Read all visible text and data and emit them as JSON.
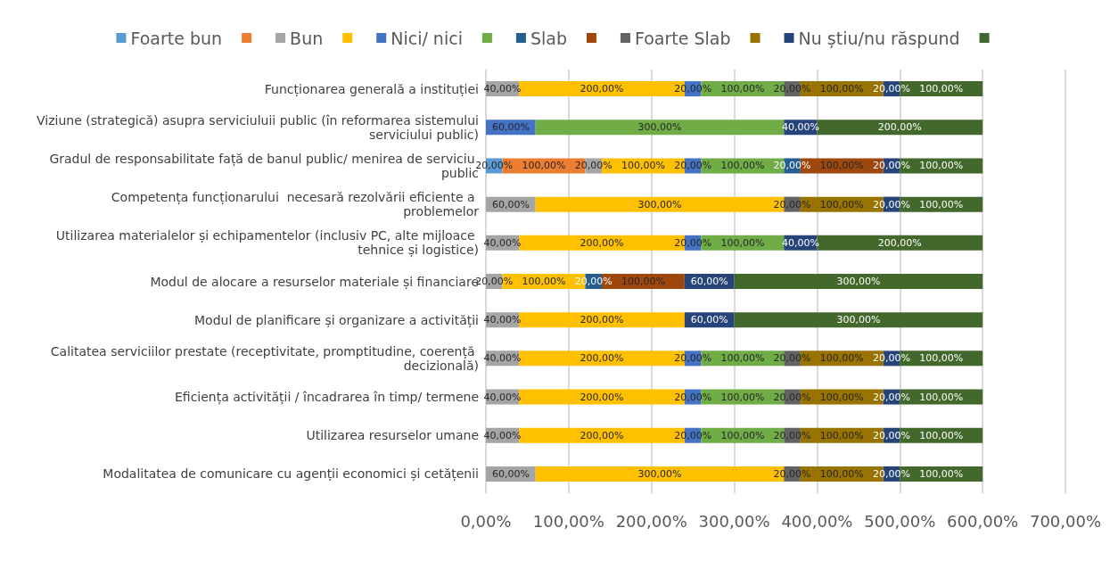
{
  "chart_data": {
    "type": "bar",
    "orientation": "horizontal",
    "stacked": true,
    "grid": "x",
    "legend": "top",
    "categories": [
      "Funcționarea generală a instituției",
      "Viziune (strategică) asupra serviciuluii public (în reformarea sistemului serviciului public)",
      "Gradul de responsabilitate față de banul public/ menirea de serviciu public",
      "Competența funcționarului  necesară rezolvării eficiente a problemelor",
      "Utilizarea materialelor și echipamentelor (inclusiv PC, alte mijloace tehnice și logistice)",
      "Modul de alocare a resurselor materiale și financiare",
      "Modul de planificare și organizare a activității",
      "Calitatea serviciilor prestate (receptivitate, promptitudine, coerență decizională)",
      "Eficiența activității / încadrarea în timp/ termene",
      "Utilizarea resurselor umane",
      "Modalitatea de comunicare cu agenții economici și cetățenii"
    ],
    "xlim": [
      0,
      700
    ],
    "xticks": [
      {
        "value": 0,
        "label": "0,00%"
      },
      {
        "value": 100,
        "label": "100,00%"
      },
      {
        "value": 200,
        "label": "200,00%"
      },
      {
        "value": 300,
        "label": "300,00%"
      },
      {
        "value": 400,
        "label": "400,00%"
      },
      {
        "value": 500,
        "label": "500,00%"
      },
      {
        "value": 600,
        "label": "600,00%"
      },
      {
        "value": 700,
        "label": "700,00%"
      }
    ],
    "series": [
      {
        "name": "Foarte bun",
        "color": "#5b9bd5",
        "values": [
          0,
          0,
          20,
          0,
          0,
          0,
          0,
          0,
          0,
          0,
          0
        ],
        "value_labels": [
          null,
          null,
          "20,00%",
          null,
          null,
          null,
          null,
          null,
          null,
          null,
          null
        ]
      },
      {
        "color": "#ed7d31",
        "values": [
          0,
          0,
          100,
          0,
          0,
          0,
          0,
          0,
          0,
          0,
          0
        ],
        "value_labels": [
          null,
          null,
          "100,00%",
          null,
          null,
          null,
          null,
          null,
          null,
          null,
          null
        ]
      },
      {
        "name": "Bun",
        "color": "#a5a5a5",
        "values": [
          40,
          0,
          20,
          60,
          40,
          20,
          40,
          40,
          40,
          40,
          60
        ],
        "value_labels": [
          "40,00%",
          null,
          "20,00%",
          "60,00%",
          "40,00%",
          "20,00%",
          "40,00%",
          "40,00%",
          "40,00%",
          "40,00%",
          "60,00%"
        ]
      },
      {
        "color": "#ffc000",
        "values": [
          200,
          0,
          100,
          300,
          200,
          100,
          200,
          200,
          200,
          200,
          300
        ],
        "value_labels": [
          "200,00%",
          null,
          "100,00%",
          "300,00%",
          "200,00%",
          "100,00%",
          "200,00%",
          "200,00%",
          "200,00%",
          "200,00%",
          "300,00%"
        ]
      },
      {
        "name": "Nici/ nici",
        "color": "#4472c4",
        "values": [
          20,
          60,
          20,
          0,
          20,
          0,
          0,
          20,
          20,
          20,
          0
        ],
        "value_labels": [
          "20,00%",
          "60,00%",
          "20,00%",
          null,
          "20,00%",
          null,
          null,
          "20,00%",
          "20,00%",
          "20,00%",
          null
        ]
      },
      {
        "color": "#70ad47",
        "values": [
          100,
          300,
          100,
          0,
          100,
          0,
          0,
          100,
          100,
          100,
          0
        ],
        "value_labels": [
          "100,00%",
          "300,00%",
          "100,00%",
          null,
          "100,00%",
          null,
          null,
          "100,00%",
          "100,00%",
          "100,00%",
          null
        ]
      },
      {
        "name": "Slab",
        "color": "#255e91",
        "values": [
          0,
          0,
          20,
          0,
          0,
          20,
          0,
          0,
          0,
          0,
          0
        ],
        "value_labels": [
          null,
          null,
          "20,00%",
          null,
          null,
          "20,00%",
          null,
          null,
          null,
          null,
          null
        ]
      },
      {
        "color": "#9e480e",
        "values": [
          0,
          0,
          100,
          0,
          0,
          100,
          0,
          0,
          0,
          0,
          0
        ],
        "value_labels": [
          null,
          null,
          "100,00%",
          null,
          null,
          "100,00%",
          null,
          null,
          null,
          null,
          null
        ]
      },
      {
        "name": "Foarte Slab",
        "color": "#636363",
        "values": [
          20,
          0,
          0,
          20,
          0,
          0,
          0,
          20,
          20,
          20,
          20
        ],
        "value_labels": [
          "20,00%",
          null,
          null,
          "20,00%",
          null,
          null,
          null,
          "20,00%",
          "20,00%",
          "20,00%",
          "20,00%"
        ]
      },
      {
        "color": "#997300",
        "values": [
          100,
          0,
          0,
          100,
          0,
          0,
          0,
          100,
          100,
          100,
          100
        ],
        "value_labels": [
          "100,00%",
          null,
          null,
          "100,00%",
          null,
          null,
          null,
          "100,00%",
          "100,00%",
          "100,00%",
          "100,00%"
        ]
      },
      {
        "name": "Nu știu/nu răspund",
        "color": "#264478",
        "values": [
          20,
          40,
          20,
          20,
          40,
          60,
          60,
          20,
          20,
          20,
          20
        ],
        "value_labels": [
          "20,00%",
          "40,00%",
          "20,00%",
          "20,00%",
          "40,00%",
          "60,00%",
          "60,00%",
          "20,00%",
          "20,00%",
          "20,00%",
          "20,00%"
        ]
      },
      {
        "color": "#43682b",
        "values": [
          100,
          200,
          100,
          100,
          200,
          300,
          300,
          100,
          100,
          100,
          100
        ],
        "value_labels": [
          "100,00%",
          "200,00%",
          "100,00%",
          "100,00%",
          "200,00%",
          "300,00%",
          "300,00%",
          "100,00%",
          "100,00%",
          "100,00%",
          "100,00%"
        ]
      }
    ]
  }
}
